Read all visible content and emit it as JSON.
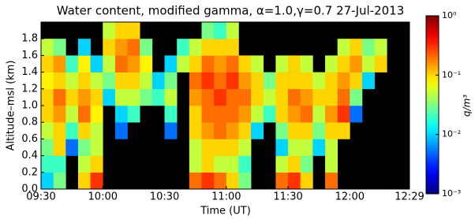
{
  "chart_data": {
    "type": "heatmap",
    "title": "Water content,  modified gamma, α=1.0,γ=0.7   27-Jul-2013",
    "x_label": "Time (UT)",
    "y_label": "Altitude–msl (km)",
    "colorbar_label": "q/m³",
    "colormap": "jet",
    "colorbar_log": true,
    "clim": [
      0.001,
      1
    ],
    "colorbar_ticks": [
      {
        "value": 1,
        "label": "10⁰"
      },
      {
        "value": 0.1,
        "label": "10⁻¹"
      },
      {
        "value": 0.01,
        "label": "10⁻²"
      },
      {
        "value": 0.001,
        "label": "10⁻³"
      }
    ],
    "xlim": [
      570,
      749
    ],
    "xticks": [
      {
        "value": 570,
        "label": "09:30"
      },
      {
        "value": 600,
        "label": "10:00"
      },
      {
        "value": 630,
        "label": "10:30"
      },
      {
        "value": 660,
        "label": "11:00"
      },
      {
        "value": 690,
        "label": "11:30"
      },
      {
        "value": 720,
        "label": "12:00"
      },
      {
        "value": 749,
        "label": "12:29"
      }
    ],
    "ylim": [
      0,
      2
    ],
    "yticks": [
      {
        "value": 0,
        "label": "0.0"
      },
      0.2,
      0.4,
      0.6,
      0.8,
      {
        "value": 1,
        "label": "1.0"
      },
      1.2,
      1.4,
      1.6,
      1.8
    ],
    "x_bins": [
      570,
      576,
      582,
      588,
      594,
      600,
      606,
      612,
      618,
      624,
      630,
      636,
      642,
      648,
      654,
      660,
      666,
      672,
      678,
      684,
      690,
      696,
      702,
      708,
      714,
      720,
      726,
      732,
      738,
      744,
      749
    ],
    "y_bins": [
      0,
      0.2,
      0.4,
      0.6,
      0.8,
      1,
      1.2,
      1.4,
      1.6,
      1.8,
      2
    ],
    "background_color": "#000000",
    "values": [
      [
        0.01,
        0.02,
        0.03,
        0.05,
        0.1,
        0.1,
        0.08,
        0.1,
        0.05,
        null
      ],
      [
        0.03,
        0.02,
        0.1,
        0.1,
        0.15,
        0.2,
        0.1,
        0.15,
        0.03,
        null
      ],
      [
        null,
        null,
        0.005,
        0.02,
        0.05,
        0.1,
        0.05,
        0.02,
        null,
        null
      ],
      [
        0.1,
        0.05,
        0.03,
        0.1,
        0.2,
        0.15,
        0.1,
        0.08,
        0.01,
        null
      ],
      [
        0.3,
        0.1,
        0.05,
        0.05,
        0.08,
        0.1,
        0.05,
        0.01,
        null,
        null
      ],
      [
        null,
        null,
        null,
        null,
        null,
        0.01,
        0.03,
        0.05,
        0.1,
        0.05
      ],
      [
        null,
        null,
        null,
        0.005,
        0.01,
        0.05,
        0.1,
        0.2,
        0.15,
        0.1
      ],
      [
        null,
        null,
        null,
        null,
        0.02,
        0.05,
        0.1,
        0.15,
        0.2,
        0.1
      ],
      [
        null,
        null,
        null,
        null,
        null,
        0.03,
        0.05,
        0.08,
        0.03,
        null
      ],
      [
        null,
        null,
        null,
        null,
        null,
        0.02,
        0.01,
        null,
        null,
        null
      ],
      [
        null,
        null,
        null,
        0.005,
        0.02,
        0.05,
        0.03,
        0.01,
        null,
        null
      ],
      [
        null,
        null,
        null,
        null,
        null,
        null,
        null,
        0.05,
        0.02,
        null
      ],
      [
        0.2,
        0.05,
        0.05,
        0.1,
        0.1,
        0.15,
        0.2,
        0.1,
        0.05,
        null
      ],
      [
        0.3,
        0.1,
        0.1,
        0.15,
        0.2,
        0.2,
        0.3,
        0.2,
        0.1,
        0.03
      ],
      [
        0.2,
        0.05,
        0.1,
        0.2,
        0.2,
        0.3,
        0.2,
        0.15,
        0.1,
        0.02
      ],
      [
        0.1,
        0.05,
        0.1,
        0.15,
        0.2,
        0.2,
        0.3,
        0.2,
        0.1,
        0.05
      ],
      [
        0.03,
        0.02,
        0.05,
        0.1,
        0.15,
        0.2,
        0.15,
        0.1,
        null,
        null
      ],
      [
        null,
        null,
        null,
        0.01,
        0.05,
        0.1,
        0.1,
        0.05,
        null,
        null
      ],
      [
        null,
        null,
        null,
        null,
        0.02,
        0.05,
        0.03,
        null,
        null,
        null
      ],
      [
        0.2,
        0.05,
        0.01,
        0.03,
        0.1,
        0.1,
        0.1,
        0.05,
        null,
        null
      ],
      [
        0.3,
        0.1,
        0.05,
        0.1,
        0.15,
        0.2,
        0.1,
        0.1,
        null,
        null
      ],
      [
        0.1,
        0.03,
        0.05,
        0.1,
        0.2,
        0.15,
        0.1,
        0.05,
        null,
        null
      ],
      [
        null,
        null,
        0.01,
        0.03,
        0.05,
        0.1,
        0.05,
        null,
        null,
        null
      ],
      [
        0.2,
        0.05,
        0.05,
        0.1,
        0.15,
        0.1,
        0.1,
        0.05,
        null,
        null
      ],
      [
        null,
        null,
        null,
        0.1,
        0.3,
        0.2,
        0.15,
        0.1,
        0.05,
        null
      ],
      [
        null,
        null,
        null,
        null,
        0.005,
        0.03,
        0.1,
        0.15,
        0.1,
        null
      ],
      [
        null,
        null,
        null,
        null,
        null,
        null,
        0.01,
        0.05,
        0.03,
        null
      ],
      [
        null,
        null,
        null,
        null,
        null,
        null,
        null,
        0.1,
        0.05,
        null
      ],
      [
        null,
        null,
        null,
        null,
        null,
        null,
        null,
        null,
        null,
        null
      ],
      [
        null,
        null,
        null,
        null,
        null,
        null,
        null,
        null,
        null,
        null
      ]
    ]
  }
}
